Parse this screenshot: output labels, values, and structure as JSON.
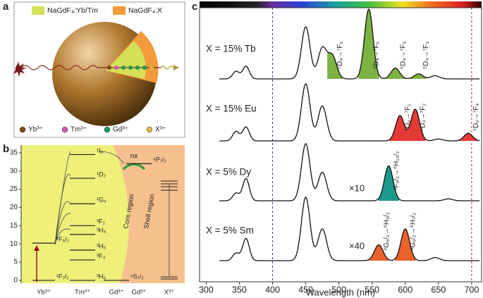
{
  "panel_a": {
    "label": "a",
    "legend": [
      {
        "name": "NaGdF₄:Yb/Tm",
        "color": "#d4e157"
      },
      {
        "name": "NaGdF₄:X",
        "color": "#f39a3a"
      }
    ],
    "ions": [
      {
        "name": "Yb³⁺",
        "color": "#7a4a1e"
      },
      {
        "name": "Tm³⁺",
        "color": "#d05ab8"
      },
      {
        "name": "Gd³⁺",
        "color": "#1e9a5a"
      },
      {
        "name": "X³⁺",
        "color": "#d8b84a"
      }
    ]
  },
  "panel_b": {
    "label": "b",
    "ylim": [
      -0.5,
      37
    ],
    "yticks": [
      0,
      5,
      10,
      15,
      20,
      25,
      30,
      35
    ],
    "ions": [
      "Yb³⁺",
      "Tm³⁺",
      "Gd³⁺",
      "Gd³⁺",
      "X³⁺"
    ],
    "levels": [
      {
        "label": "²F₇/₂",
        "energy": 0,
        "ion": 0
      },
      {
        "label": "²F₅/₂",
        "energy": 10.2,
        "ion": 0
      },
      {
        "label": "³H₆",
        "energy": 0,
        "ion": 1
      },
      {
        "label": "³F₄",
        "energy": 5.6,
        "ion": 1
      },
      {
        "label": "³H₅",
        "energy": 8.3,
        "ion": 1
      },
      {
        "label": "³H₄",
        "energy": 12.6,
        "ion": 1
      },
      {
        "label": "³F₂",
        "energy": 15,
        "ion": 1
      },
      {
        "label": "¹G₄",
        "energy": 21,
        "ion": 1
      },
      {
        "label": "¹D₂",
        "energy": 28,
        "ion": 1
      },
      {
        "label": "¹I₆",
        "energy": 34.5,
        "ion": 1
      },
      {
        "label": "⁸S₇/₂",
        "energy": 0,
        "ion": 2
      },
      {
        "label": "⁶P₇/₂",
        "energy": 32,
        "ion": 3
      }
    ],
    "core": "Core region",
    "shell": "Shell region",
    "nx": "nx"
  },
  "chart_data": {
    "type": "line",
    "panel_label": "c",
    "xlabel": "Wavelength (nm)",
    "xlim": [
      290,
      715
    ],
    "xticks": [
      300,
      350,
      400,
      450,
      500,
      550,
      600,
      650,
      700
    ],
    "dashed_lines": [
      {
        "value": 400,
        "color": "#3b3b9a"
      },
      {
        "value": 700,
        "color": "#8a3a2a"
      }
    ],
    "spectra": [
      {
        "name": "X = 15% Tb",
        "color": "#7cb342",
        "peaks": [
          {
            "wavelength": 345,
            "intensity": 0.12
          },
          {
            "wavelength": 360,
            "intensity": 0.2
          },
          {
            "wavelength": 450,
            "intensity": 0.82
          },
          {
            "wavelength": 475,
            "intensity": 0.48
          },
          {
            "wavelength": 490,
            "intensity": 0.36,
            "highlight": true,
            "transition": "⁵D₄→⁷F₆"
          },
          {
            "wavelength": 545,
            "intensity": 1.1,
            "highlight": true,
            "transition": "⁵D₄→⁷F₅"
          },
          {
            "wavelength": 585,
            "intensity": 0.17,
            "highlight": true,
            "transition": "⁵D₄→⁷F₄"
          },
          {
            "wavelength": 620,
            "intensity": 0.08,
            "highlight": true,
            "transition": "⁵D₄→⁷F₃"
          },
          {
            "wavelength": 645,
            "intensity": 0.05
          }
        ]
      },
      {
        "name": "X = 15% Eu",
        "color": "#e53935",
        "peaks": [
          {
            "wavelength": 345,
            "intensity": 0.15
          },
          {
            "wavelength": 360,
            "intensity": 0.22
          },
          {
            "wavelength": 450,
            "intensity": 0.9
          },
          {
            "wavelength": 475,
            "intensity": 0.55
          },
          {
            "wavelength": 592,
            "intensity": 0.4,
            "highlight": true,
            "transition": "⁵D₀→⁷F₁"
          },
          {
            "wavelength": 615,
            "intensity": 0.5,
            "highlight": true,
            "transition": "⁵D₀→⁷F₂"
          },
          {
            "wavelength": 650,
            "intensity": 0.03
          },
          {
            "wavelength": 695,
            "intensity": 0.12,
            "highlight": true,
            "transition": "⁵D₀→⁷F₄"
          }
        ]
      },
      {
        "name": "X = 5% Dy",
        "color": "#1a9a8a",
        "multiplier": "×10",
        "peaks": [
          {
            "wavelength": 345,
            "intensity": 0.12
          },
          {
            "wavelength": 360,
            "intensity": 0.35
          },
          {
            "wavelength": 450,
            "intensity": 0.9
          },
          {
            "wavelength": 475,
            "intensity": 0.45
          },
          {
            "wavelength": 575,
            "intensity": 0.55,
            "highlight": true,
            "transition": "⁴F₉/₂→⁶H₁₃/₂"
          },
          {
            "wavelength": 665,
            "intensity": 0.03
          }
        ]
      },
      {
        "name": "X = 5% Sm",
        "color": "#e8622a",
        "multiplier": "×40",
        "peaks": [
          {
            "wavelength": 345,
            "intensity": 0.12
          },
          {
            "wavelength": 360,
            "intensity": 0.35
          },
          {
            "wavelength": 450,
            "intensity": 1.0
          },
          {
            "wavelength": 475,
            "intensity": 0.5
          },
          {
            "wavelength": 560,
            "intensity": 0.25,
            "highlight": true,
            "transition": "⁴G₅/₂→⁶H₅/₂"
          },
          {
            "wavelength": 600,
            "intensity": 0.5,
            "highlight": true,
            "transition": "⁴G₅/₂→⁶H₇/₂"
          },
          {
            "wavelength": 645,
            "intensity": 0.05
          }
        ]
      }
    ]
  }
}
